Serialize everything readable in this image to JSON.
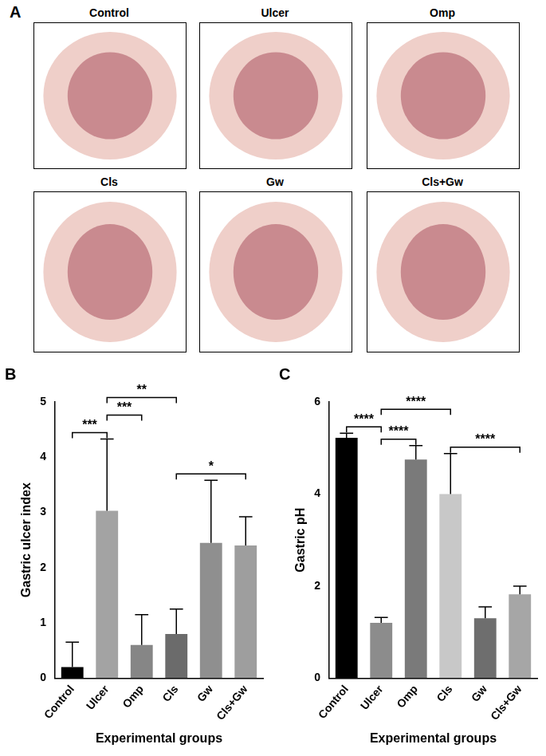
{
  "photo_panel": {
    "panel": "A",
    "titles": [
      "Control",
      "Ulcer",
      "Omp",
      "Cls",
      "Gw",
      "Cls+Gw"
    ]
  },
  "chart_data": [
    {
      "panel": "B",
      "type": "bar",
      "x_label": "Experimental groups",
      "y_label": "Gastric ulcer index",
      "categories": [
        "Control",
        "Ulcer",
        "Omp",
        "Cls",
        "Gw",
        "Cls+Gw"
      ],
      "values": [
        0.2,
        3.03,
        0.6,
        0.8,
        2.45,
        2.4
      ],
      "errors": [
        0.45,
        1.3,
        0.55,
        0.45,
        1.13,
        0.52
      ],
      "colors": [
        "#000000",
        "#a3a3a3",
        "#868686",
        "#6b6b6b",
        "#8f8f8f",
        "#9e9e9e"
      ],
      "ylim": [
        0,
        5
      ],
      "yticks": [
        0,
        1,
        2,
        3,
        4,
        5
      ],
      "grid": false,
      "comparisons": [
        {
          "from": "Control",
          "to": "Ulcer",
          "label": "***"
        },
        {
          "from": "Ulcer",
          "to": "Omp",
          "label": "***"
        },
        {
          "from": "Ulcer",
          "to": "Cls",
          "label": "**"
        },
        {
          "from": "Cls",
          "to": "Cls+Gw",
          "label": "*"
        }
      ]
    },
    {
      "panel": "C",
      "type": "bar",
      "x_label": "Experimental groups",
      "y_label": "Gastric pH",
      "categories": [
        "Control",
        "Ulcer",
        "Omp",
        "Cls",
        "Gw",
        "Cls+Gw"
      ],
      "values": [
        5.22,
        1.2,
        4.75,
        4.0,
        1.3,
        1.82
      ],
      "errors": [
        0.1,
        0.12,
        0.3,
        0.88,
        0.25,
        0.18
      ],
      "colors": [
        "#000000",
        "#8c8c8c",
        "#7a7a7a",
        "#c8c8c8",
        "#6e6e6e",
        "#a6a6a6"
      ],
      "ylim": [
        0,
        6
      ],
      "yticks": [
        0,
        2,
        4,
        6
      ],
      "grid": false,
      "comparisons": [
        {
          "from": "Control",
          "to": "Ulcer",
          "label": "****"
        },
        {
          "from": "Ulcer",
          "to": "Omp",
          "label": "****"
        },
        {
          "from": "Ulcer",
          "to": "Cls",
          "label": "****"
        },
        {
          "from": "Cls",
          "to": "Cls+Gw",
          "label": "****"
        }
      ]
    }
  ]
}
